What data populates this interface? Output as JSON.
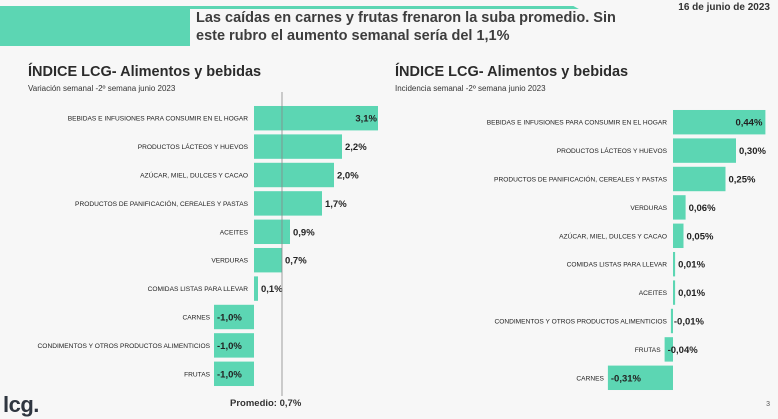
{
  "header": {
    "headline": "Las caídas en carnes y frutas frenaron la suba promedio. Sin este rubro el aumento semanal sería del 1,1%",
    "date": "16 de junio de 2023"
  },
  "colors": {
    "bar": "#5cd6b3",
    "banner": "#5cd6b3",
    "avg_line": "#888888"
  },
  "footer": {
    "logo": "lcg.",
    "average_label": "Promedio: 0,7%",
    "page_number": "3"
  },
  "chart_data": [
    {
      "type": "bar",
      "orientation": "horizontal",
      "title": "ÍNDICE LCG- Alimentos y bebidas",
      "subtitle": "Variación semanal -2º semana junio 2023",
      "unit": "%",
      "average": 0.7,
      "categories": [
        "BEBIDAS E INFUSIONES PARA CONSUMIR EN EL HOGAR",
        "PRODUCTOS LÁCTEOS Y HUEVOS",
        "AZÚCAR, MIEL, DULCES Y CACAO",
        "PRODUCTOS DE PANIFICACIÓN, CEREALES Y PASTAS",
        "ACEITES",
        "VERDURAS",
        "COMIDAS LISTAS PARA LLEVAR",
        "CARNES",
        "CONDIMENTOS Y OTROS PRODUCTOS ALIMENTICIOS",
        "FRUTAS"
      ],
      "values": [
        3.1,
        2.2,
        2.0,
        1.7,
        0.9,
        0.7,
        0.1,
        -1.0,
        -1.0,
        -1.0
      ],
      "labels": [
        "3,1%",
        "2,2%",
        "2,0%",
        "1,7%",
        "0,9%",
        "0,7%",
        "0,1%",
        "-1,0%",
        "-1,0%",
        "-1,0%"
      ]
    },
    {
      "type": "bar",
      "orientation": "horizontal",
      "title": "ÍNDICE LCG- Alimentos y bebidas",
      "subtitle": "Incidencia semanal -2º semana junio 2023",
      "unit": "%",
      "categories": [
        "BEBIDAS E INFUSIONES PARA CONSUMIR EN EL HOGAR",
        "PRODUCTOS LÁCTEOS Y HUEVOS",
        "PRODUCTOS DE PANIFICACIÓN, CEREALES Y PASTAS",
        "VERDURAS",
        "AZÚCAR, MIEL, DULCES Y CACAO",
        "COMIDAS LISTAS PARA LLEVAR",
        "ACEITES",
        "CONDIMENTOS Y OTROS PRODUCTOS ALIMENTICIOS",
        "FRUTAS",
        "CARNES"
      ],
      "values": [
        0.44,
        0.3,
        0.25,
        0.06,
        0.05,
        0.01,
        0.01,
        -0.01,
        -0.04,
        -0.31
      ],
      "labels": [
        "0,44%",
        "0,30%",
        "0,25%",
        "0,06%",
        "0,05%",
        "0,01%",
        "0,01%",
        "-0,01%",
        "-0,04%",
        "-0,31%"
      ]
    }
  ]
}
